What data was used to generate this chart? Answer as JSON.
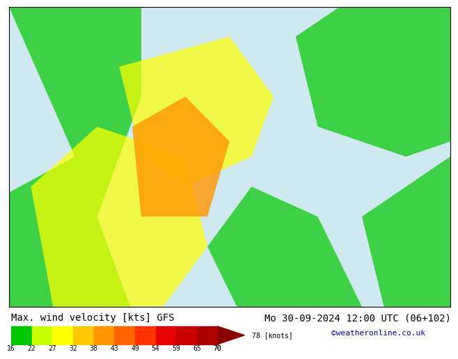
{
  "title_left": "Max. wind velocity [kts] GFS",
  "title_right": "Mo 30-09-2024 12:00 UTC (06+102)",
  "credit": "©weatheronline.co.uk",
  "colorbar_values": [
    16,
    22,
    27,
    32,
    38,
    43,
    49,
    54,
    59,
    65,
    70,
    78
  ],
  "colorbar_label": "[knots]",
  "colorbar_colors": [
    "#00c800",
    "#c8ff00",
    "#ffff00",
    "#ffc800",
    "#ff9600",
    "#ff6400",
    "#ff3200",
    "#e60000",
    "#c80000",
    "#aa0000",
    "#8b0000"
  ],
  "bg_color": "#ffffff",
  "map_bg": "#c8c8c8",
  "bottom_bar_height": 0.12,
  "title_fontsize": 10,
  "tick_fontsize": 8,
  "credit_fontsize": 8,
  "credit_color": "#0000aa"
}
